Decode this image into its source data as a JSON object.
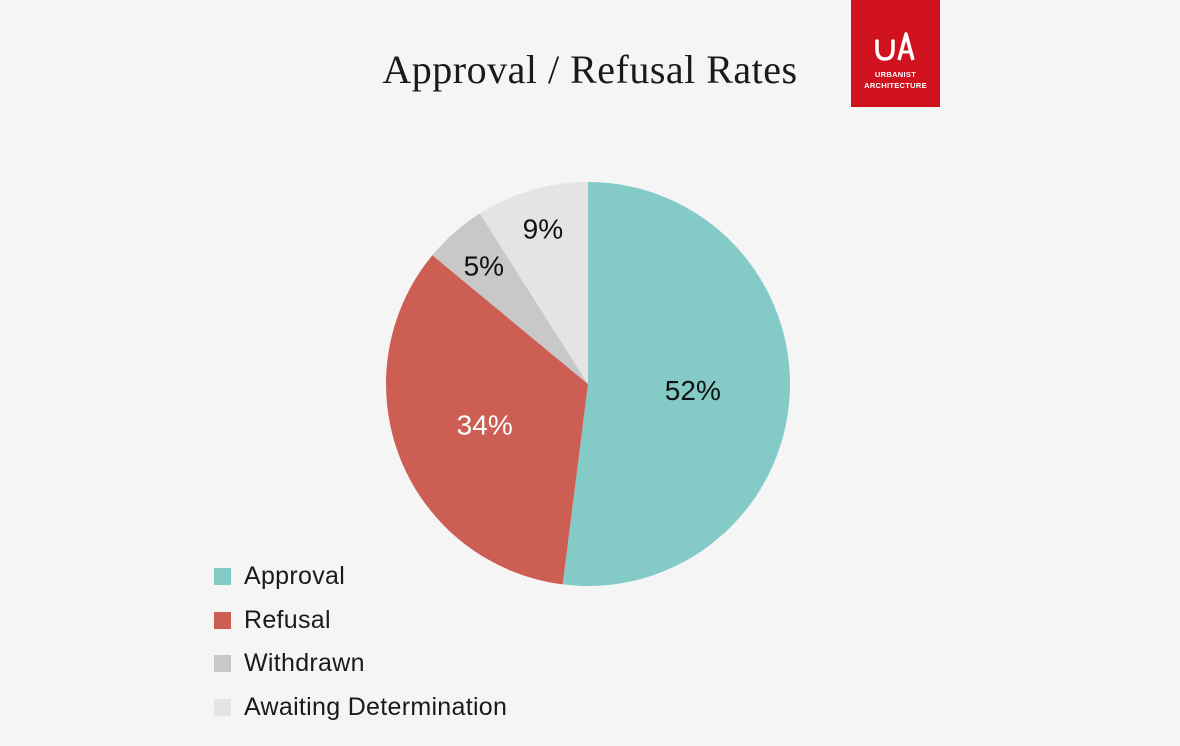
{
  "chart_data": {
    "type": "pie",
    "title": "Approval / Refusal Rates",
    "slices": [
      {
        "name": "Approval",
        "value": 52,
        "label": "52%",
        "color": "#84cbc8",
        "label_color": "#111111"
      },
      {
        "name": "Refusal",
        "value": 34,
        "label": "34%",
        "color": "#cd5e53",
        "label_color": "#ffffff"
      },
      {
        "name": "Withdrawn",
        "value": 5,
        "label": "5%",
        "color": "#c9c8c8",
        "label_color": "#111111"
      },
      {
        "name": "Awaiting Determination",
        "value": 9,
        "label": "9%",
        "color": "#e4e4e3",
        "label_color": "#111111"
      }
    ],
    "start": "12 o'clock",
    "direction": "clockwise",
    "legend": "bottom-left"
  },
  "logo": {
    "monogram": "UA",
    "name_line1": "URBANIST",
    "name_line2": "ARCHITECTURE",
    "color": "#d0121f"
  }
}
